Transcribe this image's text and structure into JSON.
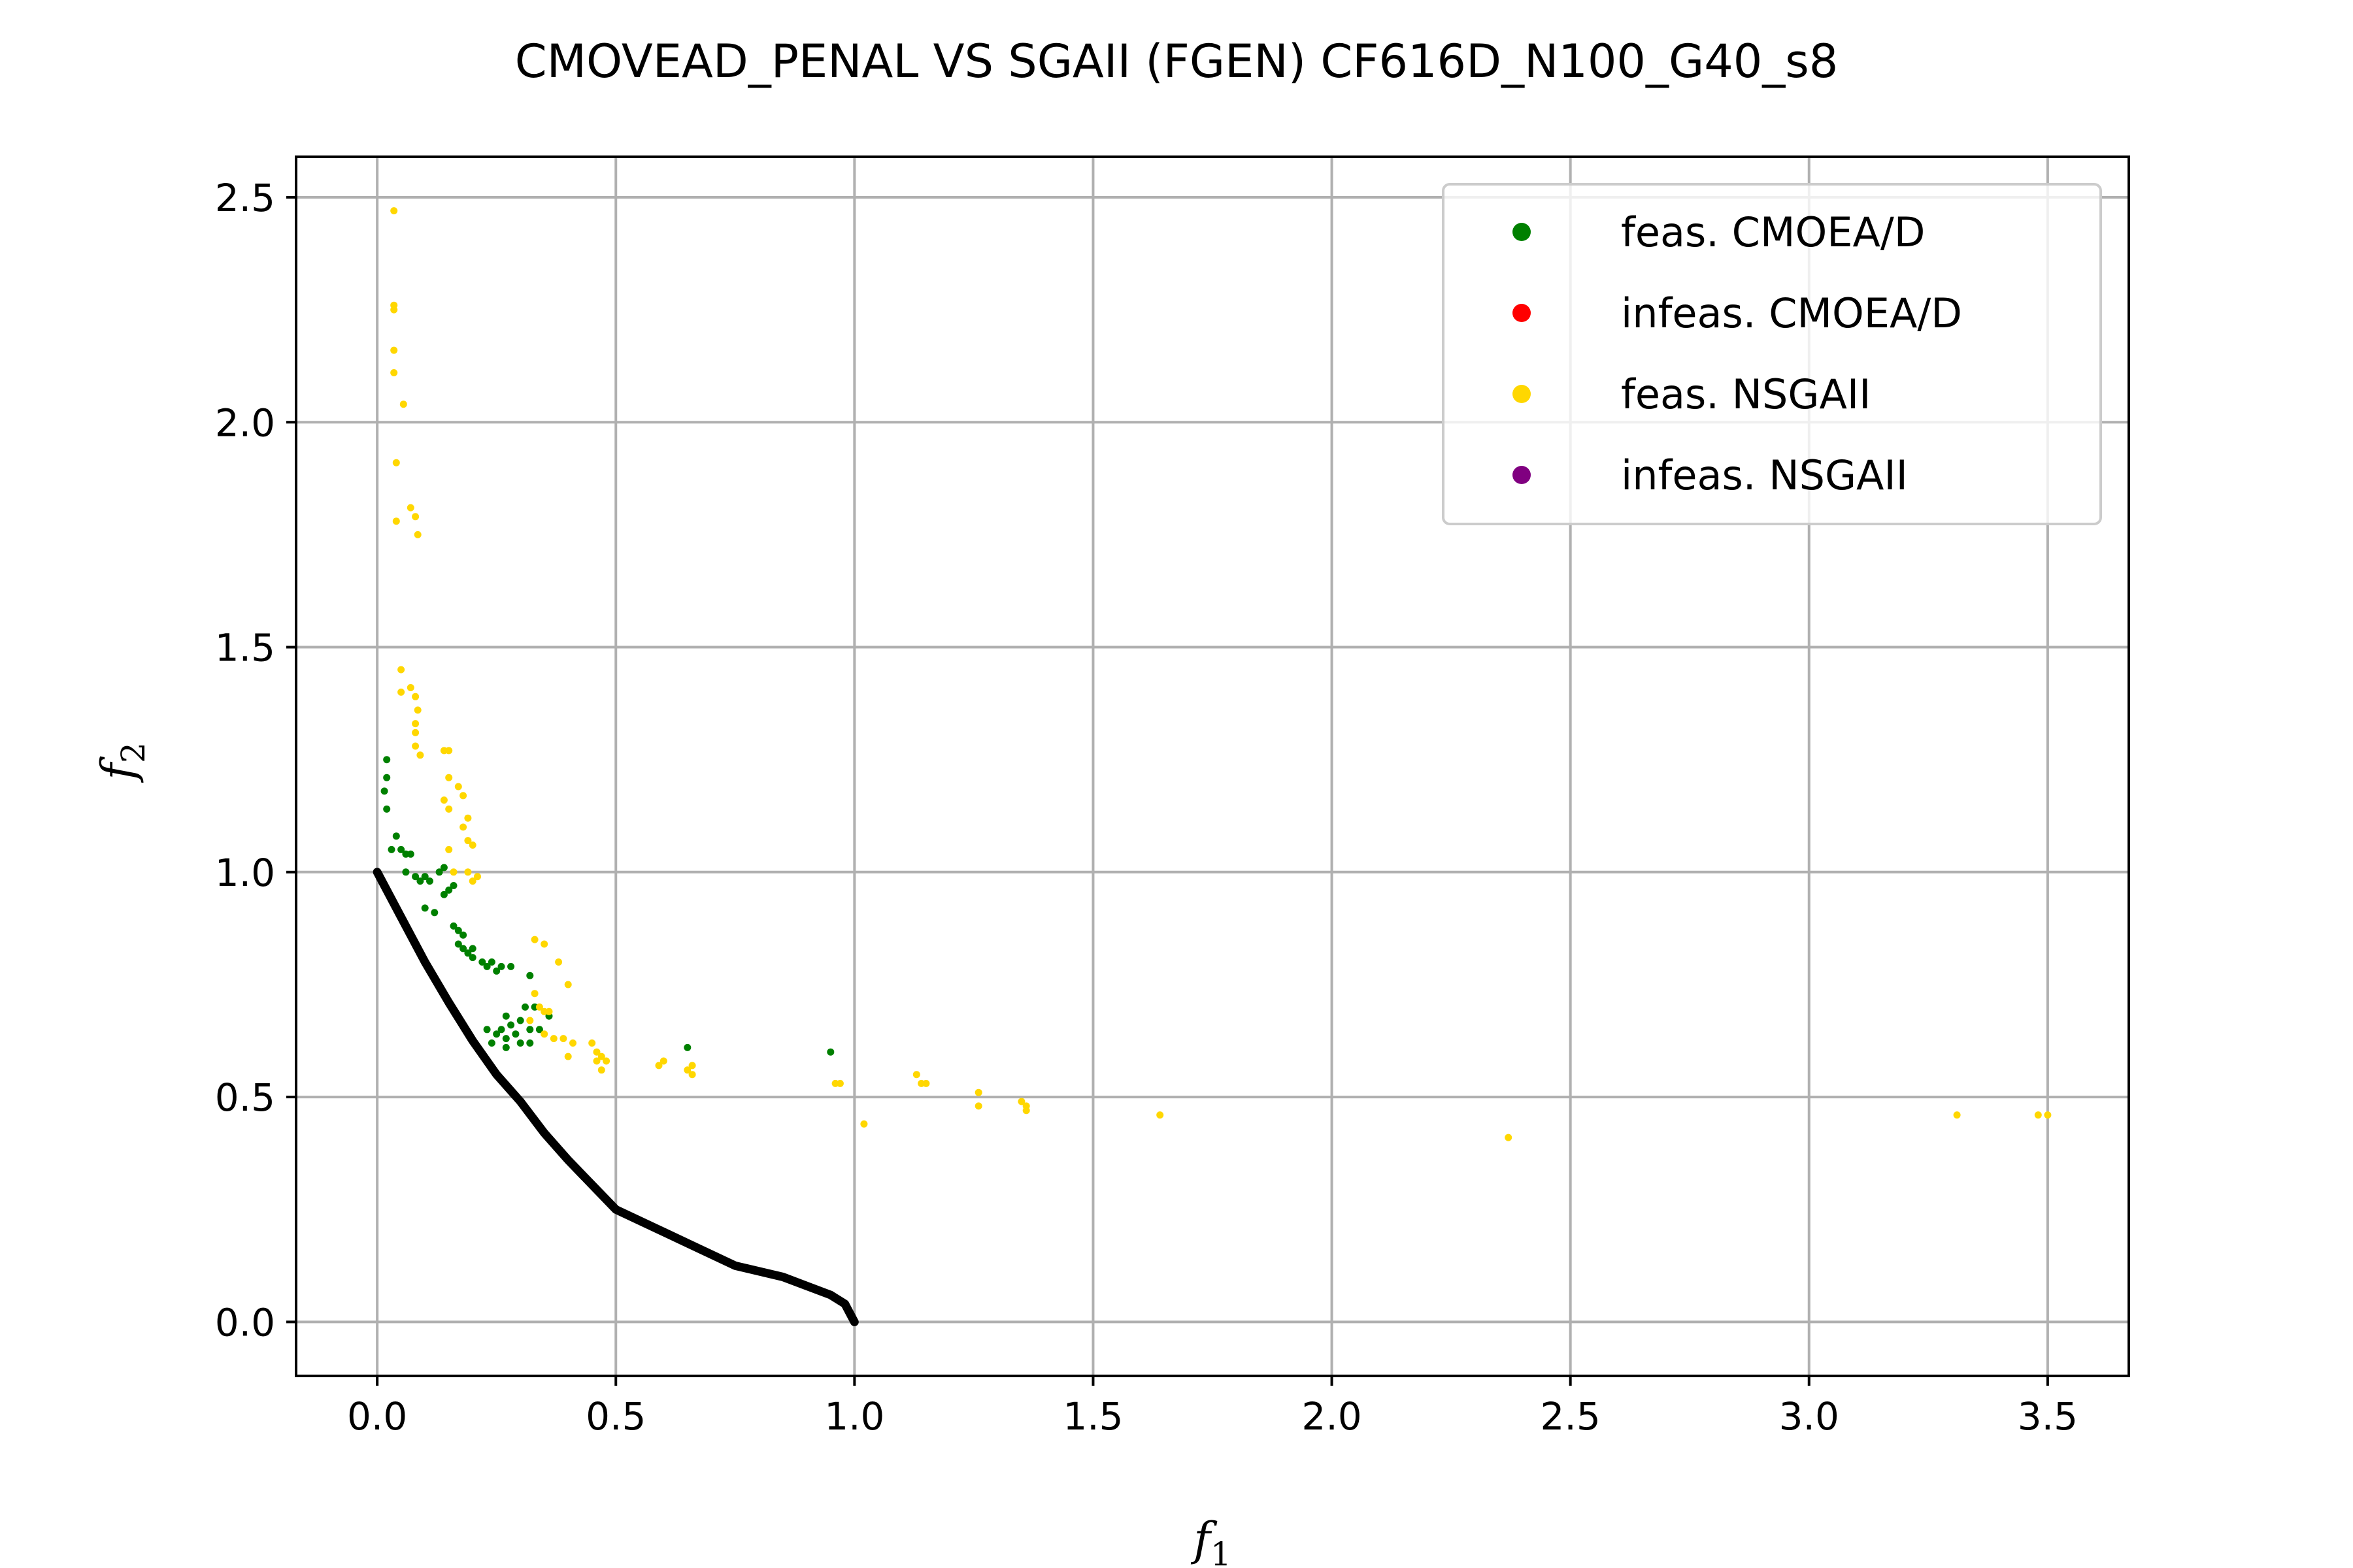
{
  "chart_data": {
    "type": "scatter",
    "title": "CMOVEAD_PENAL VS SGAII (FGEN) CF616D_N100_G40_s8",
    "xlabel": "f",
    "xlabel_sub": "1",
    "ylabel": "f",
    "ylabel_sub": "2",
    "xlim": [
      -0.17,
      3.67
    ],
    "ylim": [
      -0.12,
      2.59
    ],
    "xticks": [
      0.0,
      0.5,
      1.0,
      1.5,
      2.0,
      2.5,
      3.0,
      3.5
    ],
    "xtick_labels": [
      "0.0",
      "0.5",
      "1.0",
      "1.5",
      "2.0",
      "2.5",
      "3.0",
      "3.5"
    ],
    "yticks": [
      0.0,
      0.5,
      1.0,
      1.5,
      2.0,
      2.5
    ],
    "ytick_labels": [
      "0.0",
      "0.5",
      "1.0",
      "1.5",
      "2.0",
      "2.5"
    ],
    "grid": true,
    "legend_position": "top-right",
    "pareto_front": {
      "color": "#000000",
      "points": [
        [
          0.0,
          1.0
        ],
        [
          0.05,
          0.9
        ],
        [
          0.1,
          0.8
        ],
        [
          0.15,
          0.71
        ],
        [
          0.2,
          0.625
        ],
        [
          0.25,
          0.55
        ],
        [
          0.3,
          0.49
        ],
        [
          0.35,
          0.42
        ],
        [
          0.4,
          0.36
        ],
        [
          0.45,
          0.305
        ],
        [
          0.5,
          0.25
        ],
        [
          0.75,
          0.125
        ],
        [
          0.85,
          0.1
        ],
        [
          0.9,
          0.08
        ],
        [
          0.95,
          0.06
        ],
        [
          0.98,
          0.04
        ],
        [
          1.0,
          0.0
        ]
      ]
    },
    "series": [
      {
        "name": "feas. CMOEA/D",
        "color": "#008000",
        "points": [
          [
            0.02,
            1.25
          ],
          [
            0.02,
            1.21
          ],
          [
            0.015,
            1.18
          ],
          [
            0.02,
            1.14
          ],
          [
            0.04,
            1.08
          ],
          [
            0.05,
            1.05
          ],
          [
            0.06,
            1.04
          ],
          [
            0.07,
            1.04
          ],
          [
            0.03,
            1.05
          ],
          [
            0.06,
            1.0
          ],
          [
            0.08,
            0.99
          ],
          [
            0.09,
            0.98
          ],
          [
            0.1,
            0.99
          ],
          [
            0.11,
            0.98
          ],
          [
            0.13,
            1.0
          ],
          [
            0.14,
            1.01
          ],
          [
            0.15,
            0.96
          ],
          [
            0.14,
            0.95
          ],
          [
            0.16,
            0.97
          ],
          [
            0.1,
            0.92
          ],
          [
            0.12,
            0.91
          ],
          [
            0.16,
            0.88
          ],
          [
            0.17,
            0.87
          ],
          [
            0.18,
            0.86
          ],
          [
            0.17,
            0.84
          ],
          [
            0.18,
            0.83
          ],
          [
            0.19,
            0.82
          ],
          [
            0.2,
            0.83
          ],
          [
            0.2,
            0.81
          ],
          [
            0.22,
            0.8
          ],
          [
            0.23,
            0.79
          ],
          [
            0.24,
            0.8
          ],
          [
            0.26,
            0.79
          ],
          [
            0.28,
            0.79
          ],
          [
            0.25,
            0.78
          ],
          [
            0.32,
            0.77
          ],
          [
            0.31,
            0.7
          ],
          [
            0.36,
            0.68
          ],
          [
            0.33,
            0.7
          ],
          [
            0.27,
            0.68
          ],
          [
            0.28,
            0.66
          ],
          [
            0.3,
            0.67
          ],
          [
            0.26,
            0.65
          ],
          [
            0.29,
            0.64
          ],
          [
            0.25,
            0.64
          ],
          [
            0.27,
            0.63
          ],
          [
            0.32,
            0.65
          ],
          [
            0.34,
            0.65
          ],
          [
            0.23,
            0.65
          ],
          [
            0.24,
            0.62
          ],
          [
            0.3,
            0.62
          ],
          [
            0.27,
            0.61
          ],
          [
            0.32,
            0.62
          ],
          [
            0.65,
            0.61
          ],
          [
            0.95,
            0.6
          ]
        ]
      },
      {
        "name": "infeas. CMOEA/D",
        "color": "#ff0000",
        "points": []
      },
      {
        "name": "feas. NSGAII",
        "color": "#ffd700",
        "points": [
          [
            0.035,
            2.47
          ],
          [
            0.035,
            2.26
          ],
          [
            0.035,
            2.25
          ],
          [
            0.035,
            2.16
          ],
          [
            0.035,
            2.11
          ],
          [
            0.055,
            2.04
          ],
          [
            0.04,
            1.91
          ],
          [
            0.07,
            1.81
          ],
          [
            0.08,
            1.79
          ],
          [
            0.04,
            1.78
          ],
          [
            0.085,
            1.75
          ],
          [
            0.05,
            1.45
          ],
          [
            0.07,
            1.41
          ],
          [
            0.05,
            1.4
          ],
          [
            0.08,
            1.39
          ],
          [
            0.085,
            1.36
          ],
          [
            0.08,
            1.33
          ],
          [
            0.08,
            1.31
          ],
          [
            0.08,
            1.28
          ],
          [
            0.09,
            1.26
          ],
          [
            0.14,
            1.27
          ],
          [
            0.15,
            1.27
          ],
          [
            0.15,
            1.21
          ],
          [
            0.17,
            1.19
          ],
          [
            0.18,
            1.17
          ],
          [
            0.14,
            1.16
          ],
          [
            0.15,
            1.14
          ],
          [
            0.19,
            1.12
          ],
          [
            0.18,
            1.1
          ],
          [
            0.19,
            1.07
          ],
          [
            0.2,
            1.06
          ],
          [
            0.15,
            1.05
          ],
          [
            0.16,
            1.0
          ],
          [
            0.19,
            1.0
          ],
          [
            0.2,
            0.98
          ],
          [
            0.21,
            0.99
          ],
          [
            0.33,
            0.85
          ],
          [
            0.35,
            0.84
          ],
          [
            0.38,
            0.8
          ],
          [
            0.4,
            0.75
          ],
          [
            0.33,
            0.73
          ],
          [
            0.34,
            0.7
          ],
          [
            0.35,
            0.69
          ],
          [
            0.36,
            0.69
          ],
          [
            0.32,
            0.67
          ],
          [
            0.35,
            0.64
          ],
          [
            0.37,
            0.63
          ],
          [
            0.39,
            0.63
          ],
          [
            0.41,
            0.62
          ],
          [
            0.45,
            0.62
          ],
          [
            0.46,
            0.6
          ],
          [
            0.47,
            0.59
          ],
          [
            0.46,
            0.58
          ],
          [
            0.48,
            0.58
          ],
          [
            0.47,
            0.56
          ],
          [
            0.4,
            0.59
          ],
          [
            0.59,
            0.57
          ],
          [
            0.6,
            0.58
          ],
          [
            0.66,
            0.57
          ],
          [
            0.65,
            0.56
          ],
          [
            0.66,
            0.55
          ],
          [
            0.96,
            0.53
          ],
          [
            0.97,
            0.53
          ],
          [
            1.02,
            0.44
          ],
          [
            1.13,
            0.55
          ],
          [
            1.14,
            0.53
          ],
          [
            1.15,
            0.53
          ],
          [
            1.26,
            0.51
          ],
          [
            1.26,
            0.48
          ],
          [
            1.35,
            0.49
          ],
          [
            1.36,
            0.48
          ],
          [
            1.36,
            0.47
          ],
          [
            1.64,
            0.46
          ],
          [
            2.37,
            0.41
          ],
          [
            3.31,
            0.46
          ],
          [
            3.48,
            0.46
          ],
          [
            3.5,
            0.46
          ]
        ]
      },
      {
        "name": "infeas. NSGAII",
        "color": "#800080",
        "points": []
      }
    ]
  }
}
